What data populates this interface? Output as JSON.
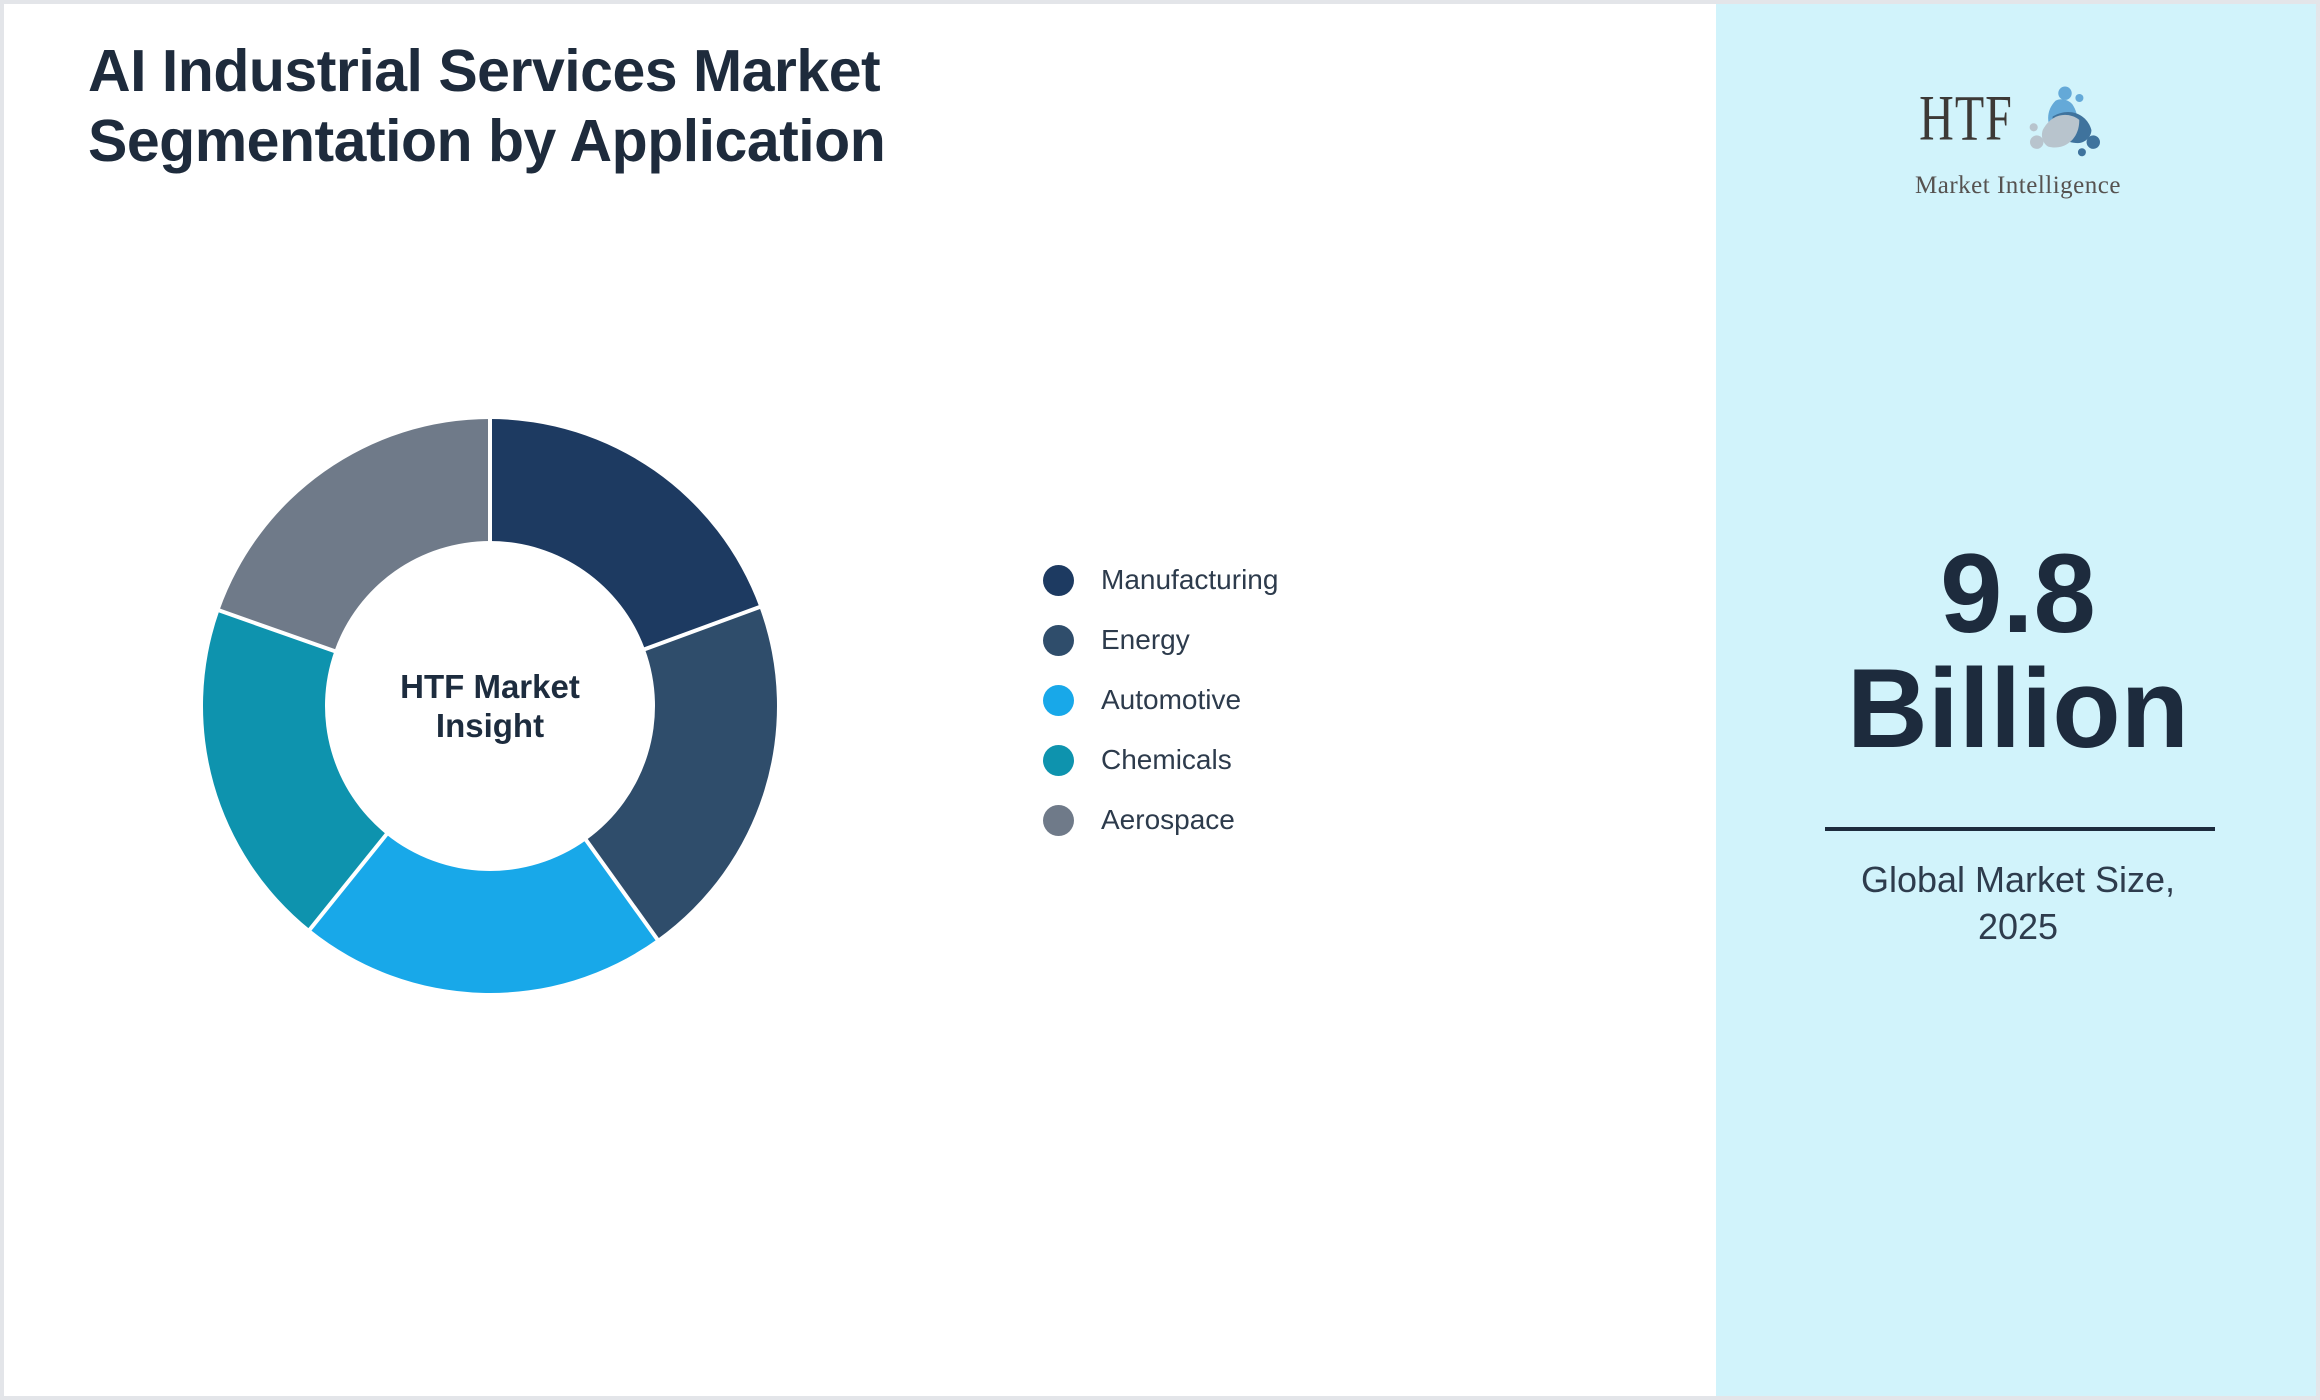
{
  "title": {
    "line1": "AI Industrial Services Market",
    "line2": "Segmentation by Application"
  },
  "chart_data": {
    "type": "pie",
    "donut": true,
    "inner_radius_ratio": 0.575,
    "start_angle_deg_from_top": 0,
    "direction": "clockwise",
    "labels": [
      "Manufacturing",
      "Energy",
      "Automotive",
      "Chemicals",
      "Aerospace"
    ],
    "values_percent": [
      19.4,
      20.7,
      20.7,
      19.6,
      19.6
    ],
    "colors": [
      "#1d3a61",
      "#2f4d6b",
      "#18a8e9",
      "#0e93ae",
      "#6f7a89"
    ],
    "separator_color": "#ffffff",
    "center_label_line1": "HTF Market",
    "center_label_line2": "Insight",
    "legend_position": "right"
  },
  "sidebar": {
    "background": "#d1f3fb",
    "logo": {
      "text": "HTF",
      "subtext": "Market Intelligence",
      "icon": "three-figures-swirl-icon",
      "icon_colors": [
        "#64a9d8",
        "#3f739d",
        "#b8c4cd"
      ]
    },
    "market_size_value": "9.8",
    "market_size_unit": "Billion",
    "caption_line1": "Global Market Size,",
    "caption_line2": "2025"
  },
  "colors": {
    "page_background": "#ffffff",
    "frame_border": "#e3e5e9",
    "title_text": "#1e2b3c",
    "legend_text": "#2d3b4c",
    "panel_text": "#1d2b3d",
    "divider": "#1d2b3d",
    "center_text": "#1d2c3e"
  }
}
